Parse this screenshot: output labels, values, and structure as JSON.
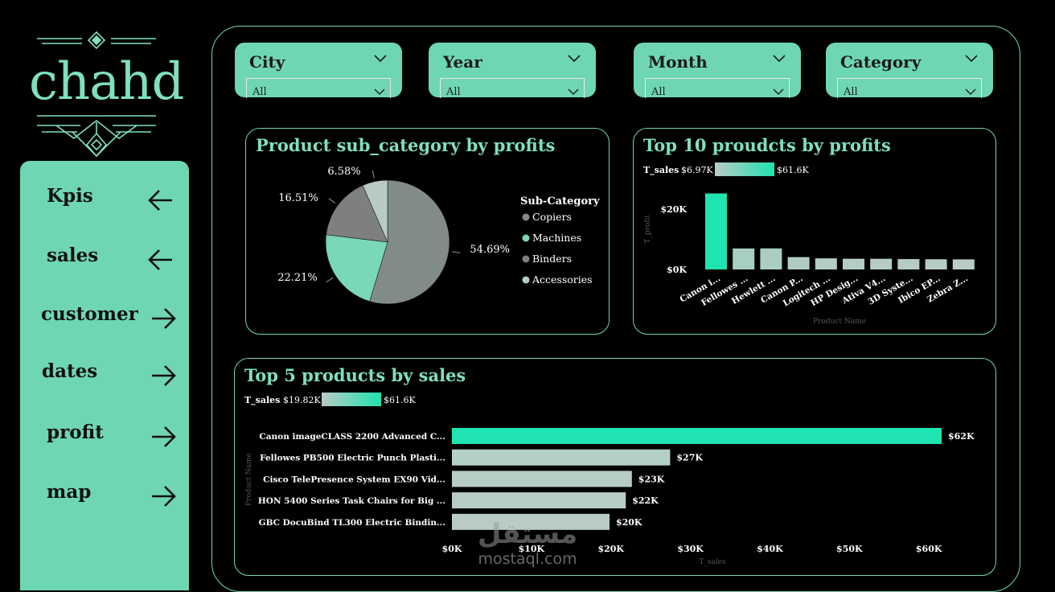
{
  "logo": {
    "text": "chahd"
  },
  "sidebar": {
    "items": [
      {
        "label": "Kpis",
        "arrow": "left"
      },
      {
        "label": "sales",
        "arrow": "left"
      },
      {
        "label": "customer",
        "arrow": "right"
      },
      {
        "label": "dates",
        "arrow": "right"
      },
      {
        "label": "profit",
        "arrow": "right"
      },
      {
        "label": "map",
        "arrow": "right"
      }
    ]
  },
  "slicers": [
    {
      "title": "City",
      "value": "All"
    },
    {
      "title": "Year",
      "value": "All"
    },
    {
      "title": "Month",
      "value": "All"
    },
    {
      "title": "Category",
      "value": "All"
    }
  ],
  "colors": {
    "accent": "#6fd6b5",
    "bar_high": "#1fe3b0",
    "bar_low": "#b9cbc6",
    "background": "#000000"
  },
  "pie_panel": {
    "title": "Product sub_category by profits"
  },
  "top10_panel": {
    "title": "Top 10 proudcts by profits"
  },
  "top5_panel": {
    "title": "Top 5 products by sales"
  },
  "watermark": {
    "arabic": "مستقل",
    "latin": "mostaql.com"
  },
  "chart_data": [
    {
      "type": "pie",
      "title": "Product sub_category by profits",
      "legend_title": "Sub-Category",
      "legend_placement": "right",
      "slices": [
        {
          "label": "Copiers",
          "value": 54.69,
          "display": "54.69%",
          "color": "#818c86"
        },
        {
          "label": "Machines",
          "value": 22.21,
          "display": "22.21%",
          "color": "#7ad7b8"
        },
        {
          "label": "Binders",
          "value": 16.51,
          "display": "16.51%",
          "color": "#7d7f80"
        },
        {
          "label": "Accessories",
          "value": 6.58,
          "display": "6.58%",
          "color": "#b7cbc4"
        }
      ]
    },
    {
      "type": "bar",
      "title": "Top 10 proudcts by profits",
      "xlabel": "Product Name",
      "ylabel": "T_profit",
      "gradient_legend": {
        "label": "T_sales",
        "min": "$6.97K",
        "max": "$61.6K"
      },
      "categories": [
        "Canon i...",
        "Fellowes ...",
        "Hewlett ...",
        "Canon P...",
        "Logitech ...",
        "HP Desig...",
        "Ativa V4...",
        "3D Syste...",
        "Ibico EP...",
        "Zebra Z..."
      ],
      "values": [
        25199.93,
        6964.18,
        6983.88,
        4094.98,
        3695.02,
        3556.01,
        3544.95,
        3443.59,
        3380.02,
        3354.34
      ],
      "color_intensity": [
        1.0,
        0.12,
        0.1,
        0.05,
        0.04,
        0.03,
        0.03,
        0.02,
        0.01,
        0.0
      ],
      "yticks": [
        "$0K",
        "$20K"
      ],
      "ytick_values": [
        0,
        20000
      ],
      "ylim": [
        0,
        28000
      ],
      "grid": false
    },
    {
      "type": "bar",
      "orientation": "horizontal",
      "title": "Top 5 products by sales",
      "xlabel": "T_sales",
      "ylabel": "Product Name",
      "gradient_legend": {
        "label": "T_sales",
        "min": "$19.82K",
        "max": "$61.6K"
      },
      "categories": [
        "Canon imageCLASS 2200 Advanced C...",
        "Fellowes PB500 Electric Punch Plasti...",
        "Cisco TelePresence System EX90 Vid...",
        "HON 5400 Series Task Chairs for Big ...",
        "GBC DocuBind TL300 Electric Bindin..."
      ],
      "values": [
        61599.82,
        27453.38,
        22638.48,
        21870.58,
        19823.48
      ],
      "data_labels": [
        "$62K",
        "$27K",
        "$23K",
        "$22K",
        "$20K"
      ],
      "xticks": [
        "$0K",
        "$10K",
        "$20K",
        "$30K",
        "$40K",
        "$50K",
        "$60K"
      ],
      "xtick_values": [
        0,
        10000,
        20000,
        30000,
        40000,
        50000,
        60000
      ],
      "xlim": [
        0,
        61600
      ],
      "grid": false
    }
  ]
}
